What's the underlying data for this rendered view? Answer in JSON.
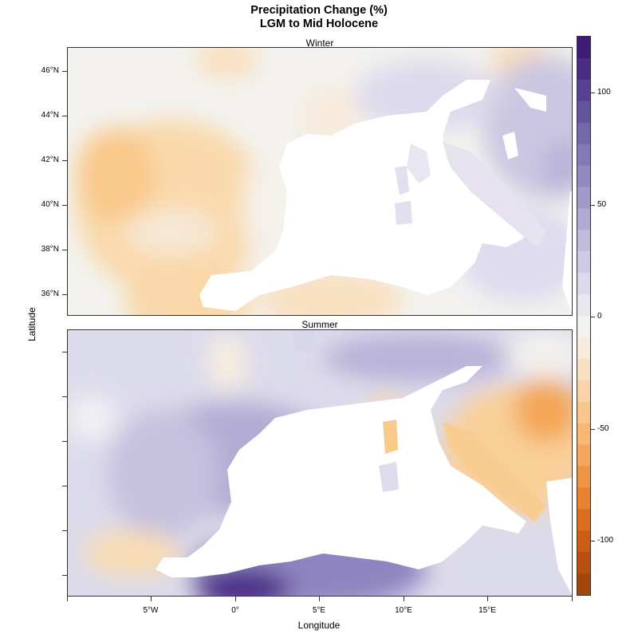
{
  "title": {
    "line1": "Precipitation Change (%)",
    "line2": "LGM to Mid Holocene"
  },
  "axes": {
    "xlabel": "Longitude",
    "ylabel": "Latitude"
  },
  "panels": [
    {
      "name": "Winter",
      "lat_ticks": [
        "46°N",
        "44°N",
        "42°N",
        "40°N",
        "38°N",
        "36°N"
      ]
    },
    {
      "name": "Summer"
    }
  ],
  "x_ticks": [
    "5°W",
    "0°",
    "5°E",
    "10°E",
    "15°E"
  ],
  "colorbar": {
    "labels": [
      "100",
      "50",
      "0",
      "-50",
      "-100"
    ],
    "range": [
      -125,
      125
    ],
    "low_color": "#a1490d",
    "high_color": "#3d1b77",
    "neutral_color": "#f5f3f0"
  },
  "chart_data": {
    "type": "heatmap",
    "title": "Precipitation Change (%)\nLGM to Mid Holocene",
    "xlabel": "Longitude",
    "ylabel": "Latitude",
    "panels": [
      "Winter",
      "Summer"
    ],
    "colorbar_ticks": [
      100,
      50,
      0,
      -50,
      -100
    ],
    "colorbar_range": [
      -125,
      125
    ]
  }
}
